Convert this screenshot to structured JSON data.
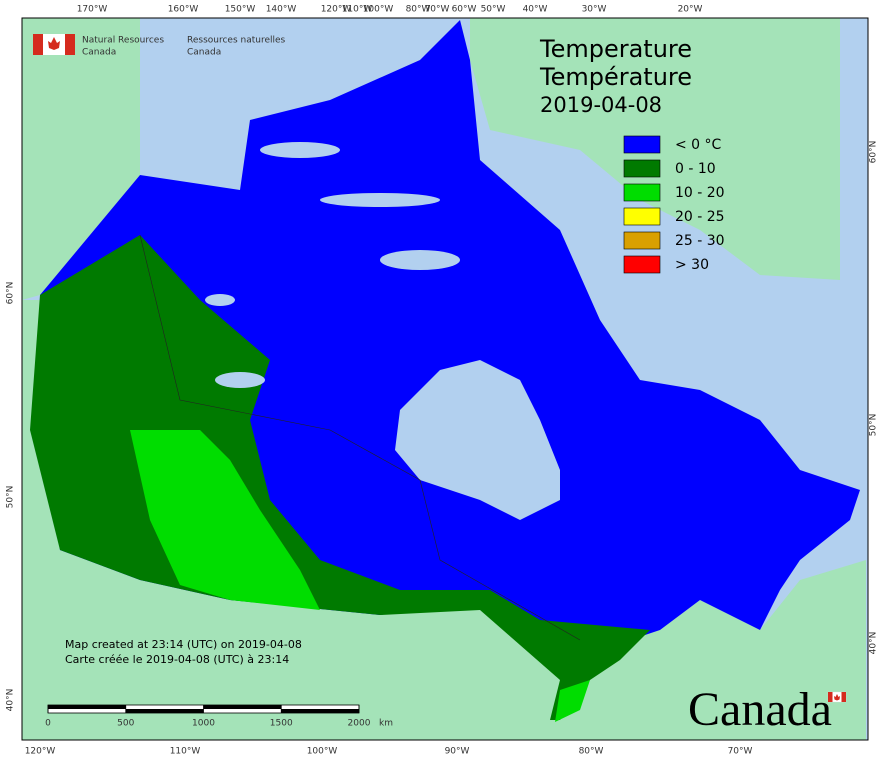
{
  "header": {
    "agency_en": [
      "Natural Resources",
      "Canada"
    ],
    "agency_fr": [
      "Ressources naturelles",
      "Canada"
    ]
  },
  "title": [
    "Temperature",
    "Température",
    "2019-04-08"
  ],
  "legend": [
    {
      "label": "< 0 °C",
      "color": "#0000ff"
    },
    {
      "label": "0 - 10",
      "color": "#007a00"
    },
    {
      "label": "10 - 20",
      "color": "#00dd00"
    },
    {
      "label": "20 - 25",
      "color": "#ffff00"
    },
    {
      "label": "25 - 30",
      "color": "#d9a000"
    },
    {
      "label": "> 30",
      "color": "#ff0000"
    }
  ],
  "graticule": {
    "top": [
      "170°W",
      "160°W",
      "150°W",
      "140°W",
      "120°W",
      "110°W",
      "100°W",
      "80°W",
      "70°W",
      "60°W",
      "50°W",
      "40°W",
      "30°W",
      "20°W"
    ],
    "bottom": [
      "120°W",
      "110°W",
      "100°W",
      "90°W",
      "80°W",
      "70°W"
    ],
    "left": [
      "60°N",
      "50°N",
      "40°N"
    ],
    "right": [
      "60°N",
      "50°N",
      "40°N"
    ]
  },
  "footer": [
    "Map created at 23:14 (UTC) on 2019-04-08",
    "Carte créée le 2019-04-08 (UTC) à 23:14"
  ],
  "scale_bar": {
    "ticks": [
      0,
      500,
      1000,
      1500,
      2000
    ],
    "unit": "km"
  },
  "wordmark": "Canada"
}
